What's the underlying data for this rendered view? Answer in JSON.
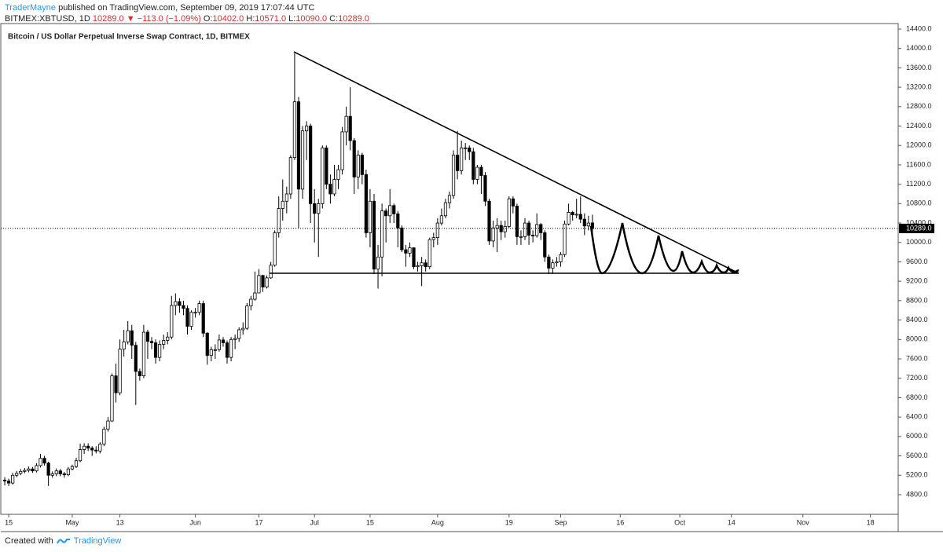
{
  "chart_data": {
    "type": "candlestick",
    "header": {
      "author": "TraderMayne",
      "published": "published on TradingView.com, September 09, 2019 17:07:44 UTC",
      "symbol": "BITMEX:XBTUSD, 1D",
      "last": "10289.0",
      "arrow": "▼",
      "change": "−113.0 (−1.09%)",
      "ohlc_labels": [
        "O:",
        "H:",
        "L:",
        "C:"
      ],
      "ohlc_values": [
        "10402.0",
        "10571.0",
        "10090.0",
        "10289.0"
      ]
    },
    "title": "Bitcoin / US Dollar Perpetual Inverse Swap Contract, 1D, BITMEX",
    "footer": {
      "created": "Created with",
      "brand": "TradingView"
    },
    "up_color": "#ffffff",
    "down_color": "#000000",
    "edge_color": "#000000",
    "last_price": {
      "value": 10289,
      "label": "10289.0"
    },
    "xlim": [
      "2019-04-13",
      "2019-11-25"
    ],
    "ylim": [
      4395,
      14513
    ],
    "xticks": [
      {
        "value": "2019-04-15",
        "label": "15"
      },
      {
        "value": "2019-05-01",
        "label": "May"
      },
      {
        "value": "2019-05-13",
        "label": "13"
      },
      {
        "value": "2019-06-01",
        "label": "Jun"
      },
      {
        "value": "2019-06-17",
        "label": "17"
      },
      {
        "value": "2019-07-01",
        "label": "Jul"
      },
      {
        "value": "2019-07-15",
        "label": "15"
      },
      {
        "value": "2019-08-01",
        "label": "Aug"
      },
      {
        "value": "2019-08-19",
        "label": "19"
      },
      {
        "value": "2019-09-01",
        "label": "Sep"
      },
      {
        "value": "2019-09-16",
        "label": "16"
      },
      {
        "value": "2019-10-01",
        "label": "Oct"
      },
      {
        "value": "2019-10-14",
        "label": "14"
      },
      {
        "value": "2019-11-01",
        "label": "Nov"
      },
      {
        "value": "2019-11-18",
        "label": "18"
      }
    ],
    "yticks": [
      {
        "value": 4800,
        "label": "4800.0"
      },
      {
        "value": 5200,
        "label": "5200.0"
      },
      {
        "value": 5600,
        "label": "5600.0"
      },
      {
        "value": 6000,
        "label": "6000.0"
      },
      {
        "value": 6400,
        "label": "6400.0"
      },
      {
        "value": 6800,
        "label": "6800.0"
      },
      {
        "value": 7200,
        "label": "7200.0"
      },
      {
        "value": 7600,
        "label": "7600.0"
      },
      {
        "value": 8000,
        "label": "8000.0"
      },
      {
        "value": 8400,
        "label": "8400.0"
      },
      {
        "value": 8800,
        "label": "8800.0"
      },
      {
        "value": 9200,
        "label": "9200.0"
      },
      {
        "value": 9600,
        "label": "9600.0"
      },
      {
        "value": 10000,
        "label": "10000.0"
      },
      {
        "value": 10400,
        "label": "10400.0"
      },
      {
        "value": 10800,
        "label": "10800.0"
      },
      {
        "value": 11200,
        "label": "11200.0"
      },
      {
        "value": 11600,
        "label": "11600.0"
      },
      {
        "value": 12000,
        "label": "12000.0"
      },
      {
        "value": 12400,
        "label": "12400.0"
      },
      {
        "value": 12800,
        "label": "12800.0"
      },
      {
        "value": 13200,
        "label": "13200.0"
      },
      {
        "value": 13600,
        "label": "13600.0"
      },
      {
        "value": 14000,
        "label": "14000.0"
      },
      {
        "value": 14400,
        "label": "14400.0"
      }
    ],
    "x": [
      "2019-04-14",
      "2019-04-15",
      "2019-04-16",
      "2019-04-17",
      "2019-04-18",
      "2019-04-19",
      "2019-04-20",
      "2019-04-21",
      "2019-04-22",
      "2019-04-23",
      "2019-04-24",
      "2019-04-25",
      "2019-04-26",
      "2019-04-27",
      "2019-04-28",
      "2019-04-29",
      "2019-04-30",
      "2019-05-01",
      "2019-05-02",
      "2019-05-03",
      "2019-05-04",
      "2019-05-05",
      "2019-05-06",
      "2019-05-07",
      "2019-05-08",
      "2019-05-09",
      "2019-05-10",
      "2019-05-11",
      "2019-05-12",
      "2019-05-13",
      "2019-05-14",
      "2019-05-15",
      "2019-05-16",
      "2019-05-17",
      "2019-05-18",
      "2019-05-19",
      "2019-05-20",
      "2019-05-21",
      "2019-05-22",
      "2019-05-23",
      "2019-05-24",
      "2019-05-25",
      "2019-05-26",
      "2019-05-27",
      "2019-05-28",
      "2019-05-29",
      "2019-05-30",
      "2019-05-31",
      "2019-06-01",
      "2019-06-02",
      "2019-06-03",
      "2019-06-04",
      "2019-06-05",
      "2019-06-06",
      "2019-06-07",
      "2019-06-08",
      "2019-06-09",
      "2019-06-10",
      "2019-06-11",
      "2019-06-12",
      "2019-06-13",
      "2019-06-14",
      "2019-06-15",
      "2019-06-16",
      "2019-06-17",
      "2019-06-18",
      "2019-06-19",
      "2019-06-20",
      "2019-06-21",
      "2019-06-22",
      "2019-06-23",
      "2019-06-24",
      "2019-06-25",
      "2019-06-26",
      "2019-06-27",
      "2019-06-28",
      "2019-06-29",
      "2019-06-30",
      "2019-07-01",
      "2019-07-02",
      "2019-07-03",
      "2019-07-04",
      "2019-07-05",
      "2019-07-06",
      "2019-07-07",
      "2019-07-08",
      "2019-07-09",
      "2019-07-10",
      "2019-07-11",
      "2019-07-12",
      "2019-07-13",
      "2019-07-14",
      "2019-07-15",
      "2019-07-16",
      "2019-07-17",
      "2019-07-18",
      "2019-07-19",
      "2019-07-20",
      "2019-07-21",
      "2019-07-22",
      "2019-07-23",
      "2019-07-24",
      "2019-07-25",
      "2019-07-26",
      "2019-07-27",
      "2019-07-28",
      "2019-07-29",
      "2019-07-30",
      "2019-07-31",
      "2019-08-01",
      "2019-08-02",
      "2019-08-03",
      "2019-08-04",
      "2019-08-05",
      "2019-08-06",
      "2019-08-07",
      "2019-08-08",
      "2019-08-09",
      "2019-08-10",
      "2019-08-11",
      "2019-08-12",
      "2019-08-13",
      "2019-08-14",
      "2019-08-15",
      "2019-08-16",
      "2019-08-17",
      "2019-08-18",
      "2019-08-19",
      "2019-08-20",
      "2019-08-21",
      "2019-08-22",
      "2019-08-23",
      "2019-08-24",
      "2019-08-25",
      "2019-08-26",
      "2019-08-27",
      "2019-08-28",
      "2019-08-29",
      "2019-08-30",
      "2019-08-31",
      "2019-09-01",
      "2019-09-02",
      "2019-09-03",
      "2019-09-04",
      "2019-09-05",
      "2019-09-06",
      "2019-09-07",
      "2019-09-08",
      "2019-09-09"
    ],
    "ohlc": [
      [
        5100,
        5160,
        4990,
        5080
      ],
      [
        5080,
        5130,
        4980,
        5040
      ],
      [
        5040,
        5250,
        5010,
        5200
      ],
      [
        5200,
        5290,
        5160,
        5240
      ],
      [
        5240,
        5330,
        5200,
        5280
      ],
      [
        5280,
        5350,
        5240,
        5300
      ],
      [
        5300,
        5380,
        5260,
        5330
      ],
      [
        5330,
        5370,
        5250,
        5290
      ],
      [
        5290,
        5450,
        5260,
        5400
      ],
      [
        5400,
        5640,
        5360,
        5550
      ],
      [
        5550,
        5600,
        5400,
        5450
      ],
      [
        5450,
        5480,
        4980,
        5200
      ],
      [
        5200,
        5280,
        5150,
        5230
      ],
      [
        5230,
        5340,
        5180,
        5290
      ],
      [
        5290,
        5330,
        5180,
        5230
      ],
      [
        5230,
        5270,
        5150,
        5210
      ],
      [
        5210,
        5370,
        5180,
        5330
      ],
      [
        5330,
        5420,
        5300,
        5380
      ],
      [
        5380,
        5560,
        5350,
        5500
      ],
      [
        5500,
        5850,
        5470,
        5730
      ],
      [
        5730,
        5860,
        5640,
        5800
      ],
      [
        5800,
        5860,
        5700,
        5760
      ],
      [
        5760,
        5800,
        5600,
        5720
      ],
      [
        5720,
        5800,
        5650,
        5700
      ],
      [
        5700,
        5880,
        5650,
        5840
      ],
      [
        5840,
        6200,
        5800,
        6150
      ],
      [
        6150,
        6400,
        6100,
        6320
      ],
      [
        6320,
        7300,
        6300,
        7250
      ],
      [
        7250,
        7500,
        6700,
        6900
      ],
      [
        6900,
        8000,
        6850,
        7800
      ],
      [
        7800,
        8200,
        7650,
        7950
      ],
      [
        7950,
        8380,
        7900,
        8180
      ],
      [
        8180,
        8300,
        7600,
        7880
      ],
      [
        7880,
        7950,
        6650,
        7340
      ],
      [
        7340,
        7400,
        7150,
        7250
      ],
      [
        7250,
        8300,
        7200,
        8150
      ],
      [
        8150,
        8200,
        7600,
        7960
      ],
      [
        7960,
        8050,
        7800,
        7930
      ],
      [
        7930,
        8000,
        7500,
        7630
      ],
      [
        7630,
        7980,
        7550,
        7900
      ],
      [
        7900,
        8100,
        7800,
        7980
      ],
      [
        7980,
        8150,
        7900,
        8050
      ],
      [
        8050,
        8900,
        8000,
        8700
      ],
      [
        8700,
        8950,
        8500,
        8780
      ],
      [
        8780,
        8850,
        8550,
        8700
      ],
      [
        8700,
        8800,
        8500,
        8640
      ],
      [
        8640,
        8700,
        8100,
        8270
      ],
      [
        8270,
        8600,
        8200,
        8560
      ],
      [
        8560,
        8650,
        8450,
        8560
      ],
      [
        8560,
        8800,
        8500,
        8740
      ],
      [
        8740,
        8800,
        8050,
        8130
      ],
      [
        8130,
        8150,
        7480,
        7670
      ],
      [
        7670,
        7850,
        7550,
        7790
      ],
      [
        7790,
        7900,
        7600,
        7790
      ],
      [
        7790,
        8100,
        7750,
        7990
      ],
      [
        7990,
        8050,
        7850,
        7930
      ],
      [
        7930,
        7980,
        7500,
        7630
      ],
      [
        7630,
        8050,
        7550,
        8000
      ],
      [
        8000,
        8100,
        7800,
        8020
      ],
      [
        8020,
        8250,
        7950,
        8200
      ],
      [
        8200,
        8350,
        8100,
        8230
      ],
      [
        8230,
        8750,
        8200,
        8690
      ],
      [
        8690,
        8900,
        8600,
        8830
      ],
      [
        8830,
        9400,
        8800,
        8960
      ],
      [
        8960,
        9450,
        8950,
        9320
      ],
      [
        9320,
        9330,
        8980,
        9080
      ],
      [
        9080,
        9320,
        9050,
        9270
      ],
      [
        9270,
        9600,
        9250,
        9530
      ],
      [
        9530,
        10250,
        9500,
        10200
      ],
      [
        10200,
        10950,
        10100,
        10700
      ],
      [
        10700,
        11300,
        10450,
        10850
      ],
      [
        10850,
        11150,
        10600,
        11000
      ],
      [
        11000,
        11800,
        10900,
        11750
      ],
      [
        11750,
        13900,
        11700,
        12900
      ],
      [
        12900,
        13000,
        10300,
        11100
      ],
      [
        11100,
        12400,
        10900,
        12300
      ],
      [
        12300,
        12500,
        11700,
        12400
      ],
      [
        12400,
        12450,
        10400,
        10800
      ],
      [
        10800,
        11100,
        10000,
        10600
      ],
      [
        10600,
        10900,
        9700,
        10800
      ],
      [
        10800,
        12000,
        10700,
        11950
      ],
      [
        11950,
        12000,
        11100,
        11200
      ],
      [
        11200,
        11400,
        10800,
        11000
      ],
      [
        11000,
        11600,
        10950,
        11300
      ],
      [
        11300,
        11600,
        11100,
        11500
      ],
      [
        11500,
        12380,
        11400,
        12280
      ],
      [
        12280,
        12800,
        12000,
        12600
      ],
      [
        12600,
        13200,
        11900,
        12100
      ],
      [
        12100,
        12150,
        11000,
        11350
      ],
      [
        11350,
        11900,
        11100,
        11800
      ],
      [
        11800,
        11850,
        11200,
        11400
      ],
      [
        11400,
        11500,
        10100,
        10200
      ],
      [
        10200,
        11100,
        9900,
        10850
      ],
      [
        10850,
        11000,
        9350,
        9450
      ],
      [
        9450,
        9950,
        9050,
        9700
      ],
      [
        9700,
        10800,
        9300,
        10650
      ],
      [
        10650,
        10700,
        10000,
        10550
      ],
      [
        10550,
        11100,
        10400,
        10760
      ],
      [
        10760,
        10800,
        10400,
        10590
      ],
      [
        10590,
        10650,
        9900,
        10300
      ],
      [
        10300,
        10350,
        9800,
        9850
      ],
      [
        9850,
        9950,
        9500,
        9780
      ],
      [
        9780,
        10000,
        9700,
        9890
      ],
      [
        9890,
        9900,
        9450,
        9500
      ],
      [
        9500,
        9600,
        9400,
        9520
      ],
      [
        9520,
        9700,
        9100,
        9580
      ],
      [
        9580,
        9650,
        9400,
        9500
      ],
      [
        9500,
        10100,
        9450,
        10060
      ],
      [
        10060,
        10200,
        9900,
        10100
      ],
      [
        10100,
        10500,
        9950,
        10400
      ],
      [
        10400,
        10700,
        10350,
        10550
      ],
      [
        10550,
        10900,
        10500,
        10820
      ],
      [
        10820,
        11050,
        10700,
        10970
      ],
      [
        10970,
        11900,
        10900,
        11800
      ],
      [
        11800,
        12300,
        11300,
        11480
      ],
      [
        11480,
        12100,
        11400,
        11950
      ],
      [
        11950,
        12050,
        11700,
        11950
      ],
      [
        11950,
        12000,
        11700,
        11870
      ],
      [
        11870,
        11950,
        11200,
        11300
      ],
      [
        11300,
        11600,
        11200,
        11550
      ],
      [
        11550,
        11600,
        11000,
        11380
      ],
      [
        11380,
        11450,
        10750,
        10850
      ],
      [
        10850,
        10900,
        9950,
        10030
      ],
      [
        10030,
        10450,
        9900,
        10300
      ],
      [
        10300,
        10500,
        9800,
        10350
      ],
      [
        10350,
        10450,
        10050,
        10220
      ],
      [
        10220,
        10450,
        10100,
        10330
      ],
      [
        10330,
        10950,
        10300,
        10900
      ],
      [
        10900,
        10950,
        10600,
        10750
      ],
      [
        10750,
        10800,
        9950,
        10120
      ],
      [
        10120,
        10250,
        9950,
        10120
      ],
      [
        10120,
        10500,
        10050,
        10400
      ],
      [
        10400,
        10450,
        9950,
        10150
      ],
      [
        10150,
        10250,
        10000,
        10140
      ],
      [
        10140,
        10600,
        10100,
        10370
      ],
      [
        10370,
        10400,
        10050,
        10200
      ],
      [
        10200,
        10250,
        9600,
        9700
      ],
      [
        9700,
        9750,
        9350,
        9470
      ],
      [
        9470,
        9650,
        9350,
        9580
      ],
      [
        9580,
        9700,
        9500,
        9600
      ],
      [
        9600,
        9800,
        9500,
        9750
      ],
      [
        9750,
        10450,
        9700,
        10380
      ],
      [
        10380,
        10800,
        10350,
        10620
      ],
      [
        10620,
        10650,
        10450,
        10570
      ],
      [
        10570,
        10900,
        10500,
        10580
      ],
      [
        10580,
        10950,
        10400,
        10480
      ],
      [
        10480,
        10600,
        10150,
        10340
      ],
      [
        10340,
        10550,
        10250,
        10400
      ],
      [
        10402,
        10571,
        10090,
        10289
      ]
    ]
  }
}
